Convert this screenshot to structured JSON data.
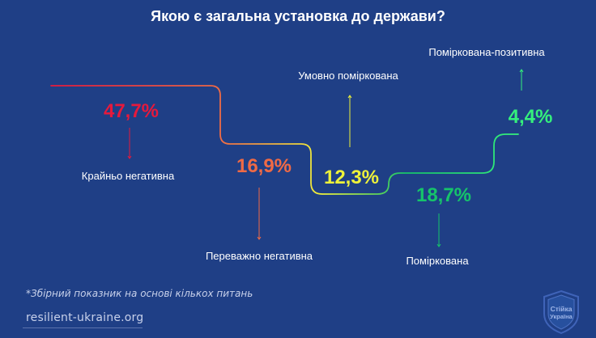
{
  "title": "Якою є загальна установка до держави?",
  "footnote": "*Збірний показник на основі кількох питань",
  "source": "resilient-ukraine.org",
  "logo": {
    "line1": "Стійка",
    "line2": "Україна"
  },
  "colors": {
    "background": "#1f3f86",
    "text": "#ffffff",
    "muted": "#c7d0ea"
  },
  "chart_data": {
    "type": "bar",
    "title": "Якою є загальна установка до держави?",
    "categories": [
      "Крайньо негативна",
      "Переважно негативна",
      "Умовно поміркована",
      "Поміркована",
      "Поміркована-позитивна"
    ],
    "series": [
      {
        "values": [
          47.7,
          16.9,
          12.3,
          18.7,
          4.4
        ],
        "labels": [
          "47,7%",
          "16,9%",
          "12,3%",
          "18,7%",
          "4,4%"
        ],
        "colors": [
          "#e6193c",
          "#f06a45",
          "#eef23a",
          "#16c46a",
          "#35f07c"
        ]
      }
    ],
    "categories_display": [
      "Крайньо негативна",
      "Переважно негативна",
      "Умовно поміркована",
      "Поміркована",
      "Поміркована-позитивна"
    ]
  }
}
